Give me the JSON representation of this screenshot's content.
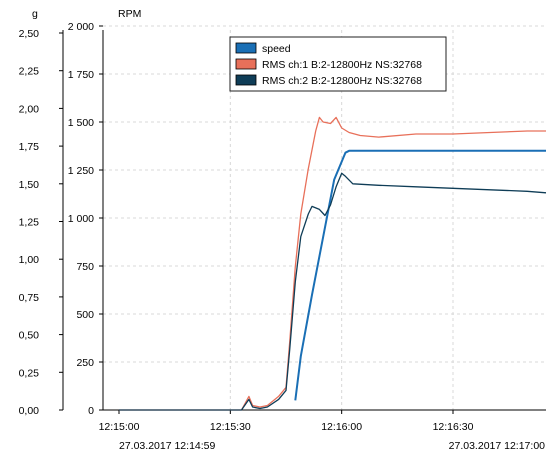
{
  "chart_data": {
    "type": "line",
    "left_axis": {
      "unit": "g",
      "ticks": [
        "2,50",
        "2,25",
        "2,00",
        "1,75",
        "1,50",
        "1,25",
        "1,00",
        "0,75",
        "0,50",
        "0,25",
        "0,00"
      ],
      "range": [
        0,
        2.6
      ]
    },
    "right_axis": {
      "unit": "RPM",
      "ticks": [
        "2 000",
        "1 750",
        "1 500",
        "1 250",
        "1 000",
        "750",
        "500",
        "250",
        "0"
      ],
      "range": [
        0,
        2000
      ]
    },
    "x_axis": {
      "ticks": [
        "12:15:00",
        "12:15:30",
        "12:16:00",
        "12:16:30"
      ],
      "range_seconds": [
        0,
        120
      ],
      "start_label": "27.03.2017 12:14:59",
      "end_label": "27.03.2017 12:17:00"
    },
    "grid": true,
    "legend_position": "top-center",
    "series": [
      {
        "name": "speed",
        "axis": "right",
        "color": "#1a6fb5",
        "points": [
          [
            47.5,
            50
          ],
          [
            49,
            280
          ],
          [
            52,
            600
          ],
          [
            55,
            900
          ],
          [
            58,
            1200
          ],
          [
            61,
            1340
          ],
          [
            62,
            1350
          ],
          [
            120,
            1350
          ]
        ]
      },
      {
        "name": "RMS ch:1 B:2-12800Hz NS:32768",
        "axis": "left",
        "color": "#e8705a",
        "points": [
          [
            0,
            0
          ],
          [
            33,
            0
          ],
          [
            35,
            0.09
          ],
          [
            36,
            0.03
          ],
          [
            38,
            0.02
          ],
          [
            40,
            0.03
          ],
          [
            43,
            0.09
          ],
          [
            45,
            0.15
          ],
          [
            46,
            0.45
          ],
          [
            47.5,
            0.95
          ],
          [
            49,
            1.3
          ],
          [
            51,
            1.6
          ],
          [
            53,
            1.85
          ],
          [
            54,
            1.94
          ],
          [
            55,
            1.91
          ],
          [
            57,
            1.9
          ],
          [
            58.5,
            1.94
          ],
          [
            60,
            1.87
          ],
          [
            62,
            1.84
          ],
          [
            65,
            1.82
          ],
          [
            70,
            1.81
          ],
          [
            80,
            1.83
          ],
          [
            90,
            1.83
          ],
          [
            100,
            1.84
          ],
          [
            110,
            1.85
          ],
          [
            120,
            1.85
          ]
        ]
      },
      {
        "name": "RMS ch:2 B:2-12800Hz NS:32768",
        "axis": "left",
        "color": "#0f3d57",
        "points": [
          [
            0,
            0
          ],
          [
            33,
            0
          ],
          [
            35,
            0.07
          ],
          [
            36,
            0.02
          ],
          [
            38,
            0.01
          ],
          [
            40,
            0.02
          ],
          [
            43,
            0.07
          ],
          [
            45,
            0.13
          ],
          [
            46,
            0.4
          ],
          [
            47.5,
            0.85
          ],
          [
            49,
            1.15
          ],
          [
            51,
            1.3
          ],
          [
            52,
            1.35
          ],
          [
            54,
            1.33
          ],
          [
            55.5,
            1.29
          ],
          [
            57,
            1.36
          ],
          [
            58.5,
            1.48
          ],
          [
            60,
            1.57
          ],
          [
            61,
            1.55
          ],
          [
            63,
            1.5
          ],
          [
            70,
            1.49
          ],
          [
            80,
            1.48
          ],
          [
            90,
            1.47
          ],
          [
            100,
            1.46
          ],
          [
            110,
            1.45
          ],
          [
            120,
            1.44
          ]
        ]
      }
    ]
  }
}
